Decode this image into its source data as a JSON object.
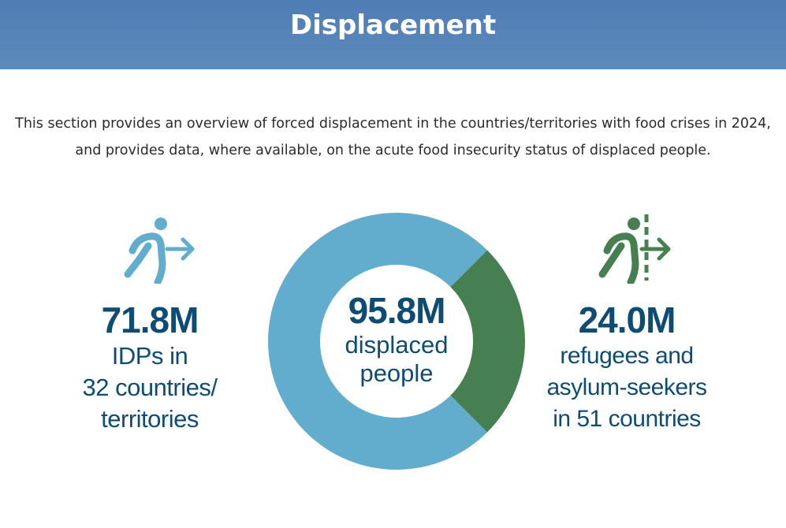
{
  "header": {
    "title": "Displacement"
  },
  "intro": {
    "text": "This section provides an overview of forced displacement in the countries/territories with food crises in 2024, and provides data, where available, on the acute food insecurity status of displaced people."
  },
  "idps": {
    "value": "71.8M",
    "line1": "IDPs in",
    "line2": "32 countries/",
    "line3": "territories",
    "icon": "person-walking-arrow-icon"
  },
  "refugees": {
    "value": "24.0M",
    "line1": "refugees and",
    "line2": "asylum-seekers",
    "line3": "in 51 countries",
    "icon": "person-crossing-border-icon"
  },
  "total": {
    "value": "95.8M",
    "line1": "displaced",
    "line2": "people"
  },
  "colors": {
    "header": "#5581b7",
    "idp": "#62acce",
    "refugee": "#478050",
    "text": "#0f4c73"
  },
  "chart_data": {
    "type": "pie",
    "donut": true,
    "title": "",
    "unit": "M",
    "total": 95.8,
    "series": [
      {
        "name": "IDPs",
        "value": 71.8,
        "color": "#62acce"
      },
      {
        "name": "refugees and asylum-seekers",
        "value": 24.0,
        "color": "#478050"
      }
    ]
  }
}
